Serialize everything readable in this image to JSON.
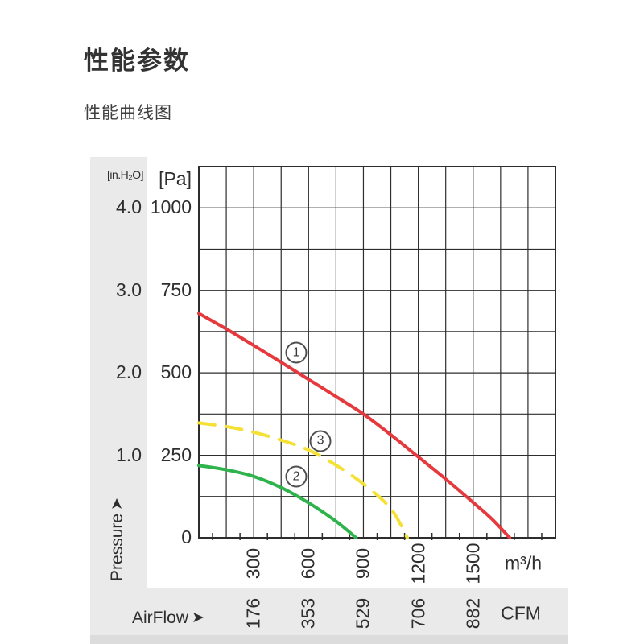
{
  "page": {
    "title": "性能参数",
    "subtitle": "性能曲线图"
  },
  "icons": {
    "airflow_arrow": "➤",
    "pressure_arrow": "➤"
  },
  "chart_data": {
    "type": "line",
    "title": "性能曲线图",
    "grid": true,
    "x_axis": {
      "label": "AirFlow",
      "primary": {
        "unit": "m³/h",
        "ticks": [
          300,
          600,
          900,
          1200,
          1500
        ],
        "max": 1950,
        "grid_step": 150,
        "minor_step": 75
      },
      "secondary": {
        "unit": "CFM",
        "ticks": [
          "176",
          "353",
          "529",
          "706",
          "882"
        ]
      }
    },
    "y_axis": {
      "label": "Pressure",
      "primary": {
        "unit": "[Pa]",
        "ticks": [
          1000,
          750,
          500,
          250,
          0
        ],
        "max": 1125,
        "grid_step": 125
      },
      "secondary": {
        "unit": "[in.H₂O]",
        "ticks": [
          "4.0",
          "3.0",
          "2.0",
          "1.0"
        ],
        "tick_pa_positions": [
          1000,
          750,
          500,
          250
        ]
      }
    },
    "series": [
      {
        "name": "1",
        "color": "#e6393d",
        "dashed": false,
        "points": [
          [
            0,
            680
          ],
          [
            150,
            633
          ],
          [
            300,
            583
          ],
          [
            450,
            532
          ],
          [
            600,
            480
          ],
          [
            750,
            428
          ],
          [
            900,
            375
          ],
          [
            1050,
            312
          ],
          [
            1200,
            245
          ],
          [
            1350,
            178
          ],
          [
            1500,
            107
          ],
          [
            1600,
            58
          ],
          [
            1700,
            0
          ]
        ]
      },
      {
        "name": "2",
        "color": "#2eb34d",
        "dashed": false,
        "points": [
          [
            0,
            219
          ],
          [
            150,
            206
          ],
          [
            300,
            186
          ],
          [
            450,
            152
          ],
          [
            600,
            106
          ],
          [
            750,
            50
          ],
          [
            860,
            0
          ]
        ]
      },
      {
        "name": "3",
        "color": "#f5e135",
        "dashed": true,
        "points": [
          [
            0,
            348
          ],
          [
            150,
            337
          ],
          [
            300,
            320
          ],
          [
            450,
            296
          ],
          [
            600,
            266
          ],
          [
            750,
            220
          ],
          [
            900,
            163
          ],
          [
            1050,
            88
          ],
          [
            1140,
            0
          ]
        ]
      }
    ],
    "labels": [
      {
        "text": "1",
        "flow": 533,
        "pa": 561
      },
      {
        "text": "2",
        "flow": 533,
        "pa": 185
      },
      {
        "text": "3",
        "flow": 665,
        "pa": 293
      }
    ]
  }
}
